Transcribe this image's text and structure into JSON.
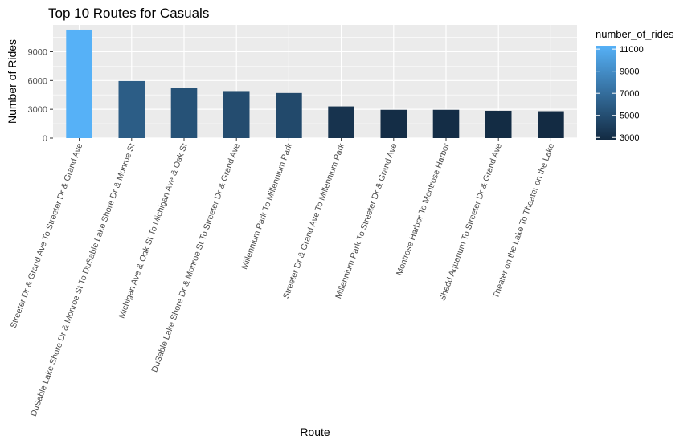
{
  "chart_data": {
    "type": "bar",
    "title": "Top 10 Routes for Casuals",
    "xlabel": "Route",
    "ylabel": "Number of Rides",
    "categories": [
      "Streeter Dr & Grand Ave To Streeter Dr & Grand Ave",
      "DuSable Lake Shore Dr & Monroe St To DuSable Lake Shore Dr & Monroe St",
      "Michigan Ave & Oak St To Michigan Ave & Oak St",
      "DuSable Lake Shore Dr & Monroe St To Streeter Dr & Grand Ave",
      "Millennium Park To Millennium Park",
      "Streeter Dr & Grand Ave To Millennium Park",
      "Millennium Park To Streeter Dr & Grand Ave",
      "Montrose Harbor To Montrose Harbor",
      "Shedd Aquarium To Streeter Dr & Grand Ave",
      "Theater on the Lake To Theater on the Lake"
    ],
    "values": [
      11300,
      5950,
      5250,
      4900,
      4700,
      3300,
      2950,
      2950,
      2850,
      2800
    ],
    "ylim": [
      0,
      11800
    ],
    "yticks": [
      0,
      3000,
      6000,
      9000
    ],
    "ytick_labels": [
      "0",
      "3000",
      "6000",
      "9000"
    ],
    "grid": true,
    "legend": {
      "title": "number_of_rides",
      "placement": "right",
      "range": [
        2800,
        11300
      ],
      "ticks": [
        11000,
        9000,
        7000,
        5000,
        3000
      ],
      "tick_labels": [
        "11000",
        "9000",
        "7000",
        "5000",
        "3000"
      ]
    },
    "colors": {
      "low": "#132B43",
      "high": "#56B1F7",
      "panel": "#EBEBEB",
      "grid": "#FFFFFF"
    }
  }
}
